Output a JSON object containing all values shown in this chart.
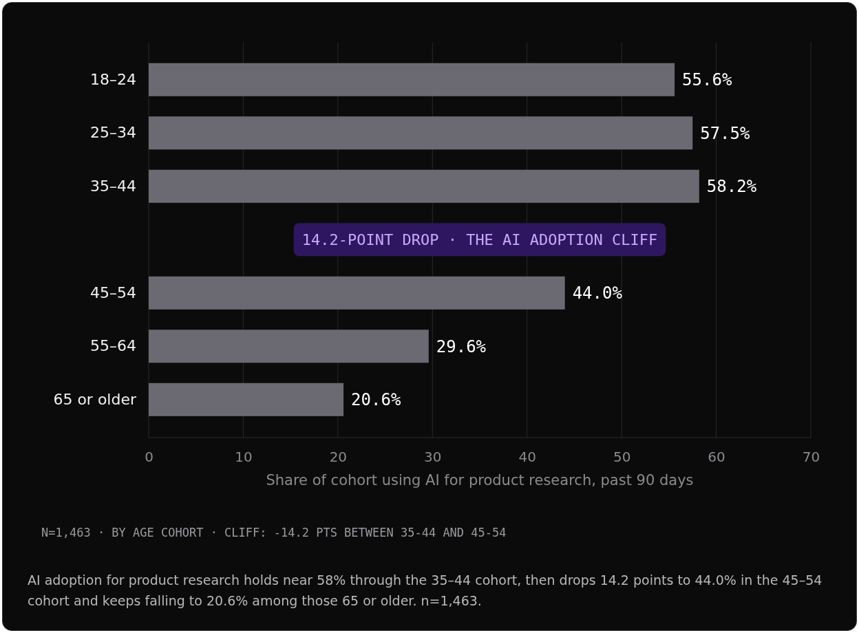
{
  "chart_data": {
    "type": "bar",
    "orientation": "horizontal",
    "categories": [
      "18–24",
      "25–34",
      "35–44",
      null,
      "45–54",
      "55–64",
      "65 or older"
    ],
    "values": [
      55.6,
      57.5,
      58.2,
      null,
      44.0,
      29.6,
      20.6
    ],
    "value_labels": [
      "55.6%",
      "57.5%",
      "58.2%",
      null,
      "44.0%",
      "29.6%",
      "20.6%"
    ],
    "color": "#6b6a73",
    "xlim": [
      0,
      70
    ],
    "xticks": [
      0,
      10,
      20,
      30,
      40,
      50,
      60,
      70
    ],
    "grid": "x",
    "xlabel": "Share of cohort using AI for product research, past 90 days",
    "annotations": [
      "14.2-POINT DROP · THE AI ADOPTION CLIFF",
      "N=1,463 · BY AGE COHORT · CLIFF: -14.2 PTS BETWEEN 35-44 AND 45-54",
      "AI adoption for product research holds near 58% through the 35–44 cohort, then drops 14.2 points to 44.0% in the 45–54 cohort and keeps falling to 20.6% among those 65 or older. n=1,463."
    ]
  }
}
